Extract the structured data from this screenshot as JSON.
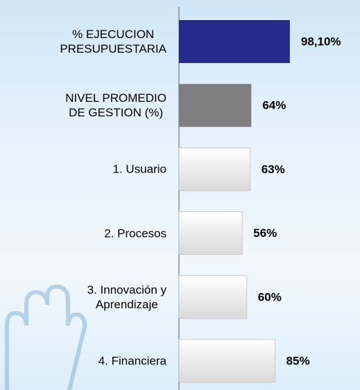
{
  "chart_data": {
    "type": "bar",
    "orientation": "horizontal",
    "categories": [
      "% EJECUCION\nPRESUPUESTARIA",
      "NIVEL PROMEDIO\nDE GESTION (%)",
      "1. Usuario",
      "2. Procesos",
      "3. Innovación y\nAprendizaje",
      "4. Financiera"
    ],
    "values": [
      98.1,
      64,
      63,
      56,
      60,
      85
    ],
    "value_labels": [
      "98,10%",
      "64%",
      "63%",
      "56%",
      "60%",
      "85%"
    ],
    "colors": [
      "#262a8c",
      "#7f7f7f",
      "#ffffff",
      "#ffffff",
      "#ffffff",
      "#ffffff"
    ],
    "xlim": [
      0,
      100
    ]
  }
}
